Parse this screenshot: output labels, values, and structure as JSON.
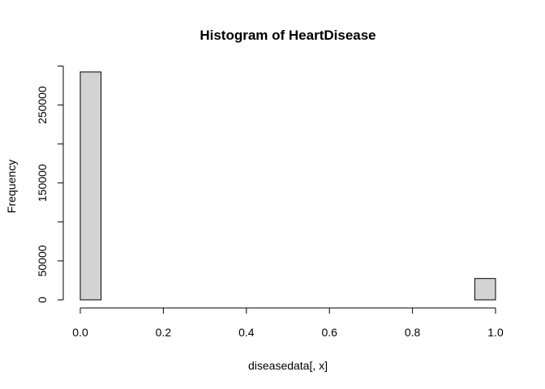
{
  "chart_data": {
    "type": "bar",
    "title": "Histogram of HeartDisease",
    "xlabel": "diseasedata[, x]",
    "ylabel": "Frequency",
    "xlim": [
      0,
      1
    ],
    "ylim": [
      0,
      300000
    ],
    "x_ticks": [
      "0.0",
      "0.2",
      "0.4",
      "0.6",
      "0.8",
      "1.0"
    ],
    "y_ticks": [
      "0",
      "50000",
      "150000",
      "250000"
    ],
    "bins": [
      {
        "start": 0.0,
        "end": 0.05,
        "count": 292422
      },
      {
        "start": 0.05,
        "end": 0.1,
        "count": 0
      },
      {
        "start": 0.1,
        "end": 0.15,
        "count": 0
      },
      {
        "start": 0.15,
        "end": 0.2,
        "count": 0
      },
      {
        "start": 0.2,
        "end": 0.25,
        "count": 0
      },
      {
        "start": 0.25,
        "end": 0.3,
        "count": 0
      },
      {
        "start": 0.3,
        "end": 0.35,
        "count": 0
      },
      {
        "start": 0.35,
        "end": 0.4,
        "count": 0
      },
      {
        "start": 0.4,
        "end": 0.45,
        "count": 0
      },
      {
        "start": 0.45,
        "end": 0.5,
        "count": 0
      },
      {
        "start": 0.5,
        "end": 0.55,
        "count": 0
      },
      {
        "start": 0.55,
        "end": 0.6,
        "count": 0
      },
      {
        "start": 0.6,
        "end": 0.65,
        "count": 0
      },
      {
        "start": 0.65,
        "end": 0.7,
        "count": 0
      },
      {
        "start": 0.7,
        "end": 0.75,
        "count": 0
      },
      {
        "start": 0.75,
        "end": 0.8,
        "count": 0
      },
      {
        "start": 0.8,
        "end": 0.85,
        "count": 0
      },
      {
        "start": 0.85,
        "end": 0.9,
        "count": 0
      },
      {
        "start": 0.9,
        "end": 0.95,
        "count": 0
      },
      {
        "start": 0.95,
        "end": 1.0,
        "count": 27373
      }
    ],
    "bar_fill": "#d3d3d3",
    "bar_stroke": "#000000",
    "grid": false,
    "legend": "none"
  }
}
